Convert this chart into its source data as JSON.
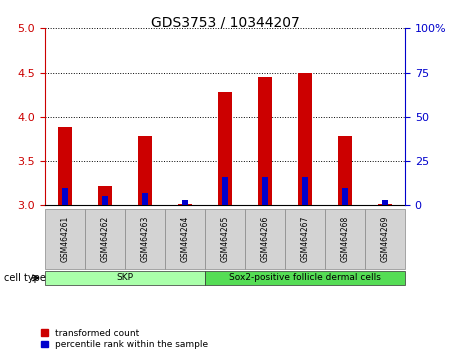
{
  "title": "GDS3753 / 10344207",
  "samples": [
    "GSM464261",
    "GSM464262",
    "GSM464263",
    "GSM464264",
    "GSM464265",
    "GSM464266",
    "GSM464267",
    "GSM464268",
    "GSM464269"
  ],
  "red_values": [
    3.88,
    3.22,
    3.78,
    3.02,
    4.28,
    4.45,
    4.5,
    3.78,
    3.02
  ],
  "blue_values": [
    10,
    5,
    7,
    3,
    16,
    16,
    16,
    10,
    3
  ],
  "ylim_left": [
    3.0,
    5.0
  ],
  "ylim_right": [
    0,
    100
  ],
  "yticks_left": [
    3.0,
    3.5,
    4.0,
    4.5,
    5.0
  ],
  "yticks_right": [
    0,
    25,
    50,
    75,
    100
  ],
  "ytick_labels_right": [
    "0",
    "25",
    "50",
    "75",
    "100%"
  ],
  "cell_types": [
    {
      "label": "SKP",
      "start": 0,
      "end": 3,
      "color": "#aaffaa"
    },
    {
      "label": "Sox2-positive follicle dermal cells",
      "start": 4,
      "end": 8,
      "color": "#55dd55"
    }
  ],
  "bar_width": 0.35,
  "red_color": "#CC0000",
  "blue_color": "#0000CC",
  "base": 3.0,
  "legend_red": "transformed count",
  "legend_blue": "percentile rank within the sample",
  "cell_type_label": "cell type",
  "left_tick_color": "#CC0000",
  "right_tick_color": "#0000CC",
  "title_fontsize": 10
}
